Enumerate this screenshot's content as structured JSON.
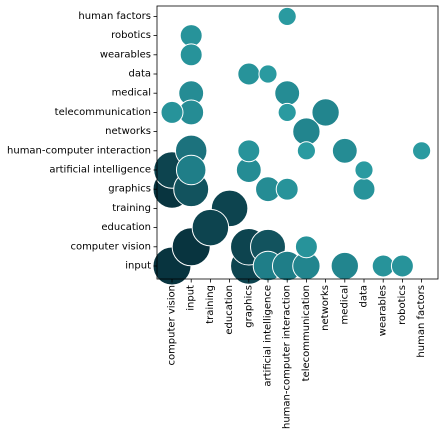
{
  "chart_data": {
    "type": "scatter",
    "subtype": "bubble-matrix",
    "title": "",
    "xlabel": "",
    "ylabel": "",
    "grid": false,
    "legend": "none",
    "x_categories": [
      "computer vision",
      "input",
      "training",
      "education",
      "graphics",
      "artificial intelligence",
      "human-computer interaction",
      "telecommunication",
      "networks",
      "medical",
      "data",
      "wearables",
      "robotics",
      "human factors"
    ],
    "y_categories": [
      "input",
      "computer vision",
      "education",
      "training",
      "graphics",
      "artificial intelligence",
      "human-computer interaction",
      "networks",
      "telecommunication",
      "medical",
      "data",
      "wearables",
      "robotics",
      "human factors"
    ],
    "color_scale": {
      "low": "#2a9aa0",
      "mid": "#1e7a85",
      "high": "#08343f"
    },
    "points": [
      {
        "x": "computer vision",
        "y": "input",
        "value": 10
      },
      {
        "x": "input",
        "y": "computer vision",
        "value": 10
      },
      {
        "x": "computer vision",
        "y": "graphics",
        "value": 10
      },
      {
        "x": "computer vision",
        "y": "artificial intelligence",
        "value": 9
      },
      {
        "x": "education",
        "y": "training",
        "value": 9
      },
      {
        "x": "training",
        "y": "education",
        "value": 9
      },
      {
        "x": "graphics",
        "y": "input",
        "value": 9
      },
      {
        "x": "graphics",
        "y": "computer vision",
        "value": 9
      },
      {
        "x": "input",
        "y": "graphics",
        "value": 8
      },
      {
        "x": "artificial intelligence",
        "y": "computer vision",
        "value": 8
      },
      {
        "x": "input",
        "y": "human-computer interaction",
        "value": 6
      },
      {
        "x": "input",
        "y": "artificial intelligence",
        "value": 5
      },
      {
        "x": "artificial intelligence",
        "y": "input",
        "value": 5
      },
      {
        "x": "human-computer interaction",
        "y": "input",
        "value": 5
      },
      {
        "x": "telecommunication",
        "y": "input",
        "value": 4
      },
      {
        "x": "medical",
        "y": "input",
        "value": 4
      },
      {
        "x": "networks",
        "y": "telecommunication",
        "value": 4
      },
      {
        "x": "telecommunication",
        "y": "networks",
        "value": 4
      },
      {
        "x": "artificial intelligence",
        "y": "graphics",
        "value": 3
      },
      {
        "x": "graphics",
        "y": "artificial intelligence",
        "value": 3
      },
      {
        "x": "input",
        "y": "medical",
        "value": 3
      },
      {
        "x": "input",
        "y": "telecommunication",
        "value": 3
      },
      {
        "x": "human-computer interaction",
        "y": "medical",
        "value": 3
      },
      {
        "x": "medical",
        "y": "human-computer interaction",
        "value": 3
      },
      {
        "x": "human-computer interaction",
        "y": "graphics",
        "value": 2
      },
      {
        "x": "computer vision",
        "y": "telecommunication",
        "value": 2
      },
      {
        "x": "telecommunication",
        "y": "computer vision",
        "value": 2
      },
      {
        "x": "graphics",
        "y": "human-computer interaction",
        "value": 2
      },
      {
        "x": "graphics",
        "y": "data",
        "value": 2
      },
      {
        "x": "data",
        "y": "graphics",
        "value": 2
      },
      {
        "x": "input",
        "y": "robotics",
        "value": 2
      },
      {
        "x": "input",
        "y": "wearables",
        "value": 2
      },
      {
        "x": "wearables",
        "y": "input",
        "value": 2
      },
      {
        "x": "robotics",
        "y": "input",
        "value": 2
      },
      {
        "x": "human-computer interaction",
        "y": "human factors",
        "value": 1
      },
      {
        "x": "human factors",
        "y": "human-computer interaction",
        "value": 1
      },
      {
        "x": "artificial intelligence",
        "y": "data",
        "value": 1
      },
      {
        "x": "data",
        "y": "artificial intelligence",
        "value": 1
      },
      {
        "x": "human-computer interaction",
        "y": "telecommunication",
        "value": 1
      },
      {
        "x": "telecommunication",
        "y": "human-computer interaction",
        "value": 1
      }
    ]
  }
}
